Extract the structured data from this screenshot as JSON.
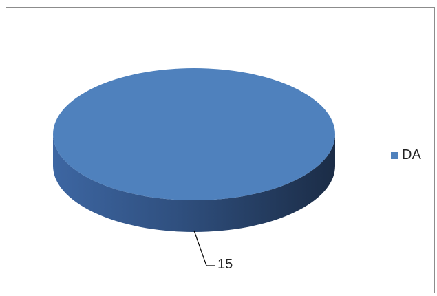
{
  "chart_data": {
    "type": "pie",
    "style": "3d",
    "title": "",
    "slices": [
      {
        "name": "DA",
        "value": 15,
        "color": "#4f81bd"
      }
    ],
    "data_labels": [
      "15"
    ],
    "legend": {
      "entries": [
        "DA"
      ],
      "placement": "right"
    }
  }
}
